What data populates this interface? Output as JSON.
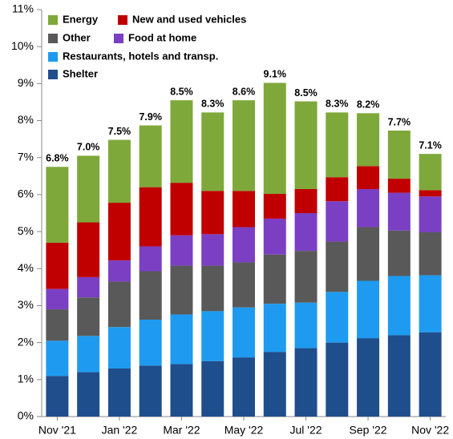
{
  "chart_data": {
    "type": "stacked_bar",
    "categories": [
      "Nov '21",
      null,
      "Jan '22",
      null,
      "Mar '22",
      null,
      "May '22",
      null,
      "Jul '22",
      null,
      "Sep '22",
      null,
      "Nov '22"
    ],
    "series": [
      {
        "name": "Shelter",
        "color": "#1f4e8c",
        "values": [
          1.1,
          1.2,
          1.3,
          1.38,
          1.42,
          1.5,
          1.6,
          1.75,
          1.85,
          2.0,
          2.12,
          2.2,
          2.28
        ]
      },
      {
        "name": "Restaurants, hotels and transp.",
        "color": "#1e9bf0",
        "values": [
          0.95,
          0.98,
          1.12,
          1.24,
          1.34,
          1.35,
          1.35,
          1.3,
          1.23,
          1.37,
          1.55,
          1.6,
          1.54
        ]
      },
      {
        "name": "Other",
        "color": "#595959",
        "values": [
          0.85,
          1.04,
          1.23,
          1.31,
          1.32,
          1.23,
          1.22,
          1.33,
          1.4,
          1.36,
          1.45,
          1.23,
          1.16
        ]
      },
      {
        "name": "Food at home",
        "color": "#7b3fc4",
        "values": [
          0.55,
          0.55,
          0.57,
          0.67,
          0.82,
          0.85,
          0.95,
          0.97,
          1.02,
          1.09,
          1.03,
          1.02,
          0.97
        ]
      },
      {
        "name": "New and used vehicles",
        "color": "#c00000",
        "values": [
          1.25,
          1.48,
          1.56,
          1.6,
          1.42,
          1.17,
          0.98,
          0.67,
          0.65,
          0.65,
          0.62,
          0.38,
          0.17
        ]
      },
      {
        "name": "Energy",
        "color": "#7fa83a",
        "values": [
          2.05,
          1.8,
          1.7,
          1.67,
          2.23,
          2.12,
          2.45,
          3.0,
          2.37,
          1.75,
          1.43,
          1.3,
          0.98
        ]
      }
    ],
    "totals": {
      "values": [
        6.8,
        7.0,
        7.5,
        7.9,
        8.5,
        8.3,
        8.6,
        9.1,
        8.5,
        8.3,
        8.2,
        7.7,
        7.1
      ],
      "value_labels": [
        "6.8%",
        "7.0%",
        "7.5%",
        "7.9%",
        "8.5%",
        "8.3%",
        "8.6%",
        "9.1%",
        "8.5%",
        "8.3%",
        "8.2%",
        "7.7%",
        "7.1%"
      ]
    },
    "ylim": [
      0,
      11
    ],
    "yticks": [
      {
        "value": 0,
        "label": "0%"
      },
      {
        "value": 1,
        "label": "1%"
      },
      {
        "value": 2,
        "label": "2%"
      },
      {
        "value": 3,
        "label": "3%"
      },
      {
        "value": 4,
        "label": "4%"
      },
      {
        "value": 5,
        "label": "5%"
      },
      {
        "value": 6,
        "label": "6%"
      },
      {
        "value": 7,
        "label": "7%"
      },
      {
        "value": 8,
        "label": "8%"
      },
      {
        "value": 9,
        "label": "9%"
      },
      {
        "value": 10,
        "label": "10%"
      },
      {
        "value": 11,
        "label": "11%"
      }
    ],
    "grid": false
  }
}
